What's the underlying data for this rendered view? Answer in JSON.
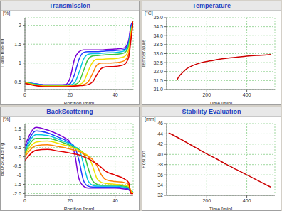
{
  "chart_data": [
    {
      "type": "line",
      "title": "Transmission",
      "unit": "[%]",
      "y_label": "Transmission",
      "x_label": "Position [mm]",
      "x": [
        0,
        5,
        10,
        15,
        18,
        20,
        22,
        24,
        26,
        28,
        30,
        32,
        34,
        36,
        40,
        44,
        46,
        47,
        48
      ],
      "xlim": [
        0,
        48
      ],
      "xticks": [
        0,
        20,
        40
      ],
      "ylim": [
        0.3,
        2.2
      ],
      "yticks": [
        0.5,
        1,
        1.5,
        2
      ],
      "grid": true,
      "series": [
        {
          "color": "#7b00d4",
          "values": [
            0.5,
            0.45,
            0.42,
            0.42,
            0.43,
            0.6,
            1.1,
            1.3,
            1.35,
            1.35,
            1.35,
            1.35,
            1.35,
            1.36,
            1.37,
            1.4,
            1.6,
            2.0,
            2.1
          ]
        },
        {
          "color": "#1f3cff",
          "values": [
            0.5,
            0.45,
            0.42,
            0.42,
            0.42,
            0.45,
            0.7,
            1.1,
            1.28,
            1.3,
            1.3,
            1.3,
            1.31,
            1.32,
            1.33,
            1.36,
            1.55,
            1.95,
            2.1
          ]
        },
        {
          "color": "#00c8e0",
          "values": [
            0.5,
            0.44,
            0.41,
            0.41,
            0.41,
            0.42,
            0.48,
            0.75,
            1.1,
            1.23,
            1.25,
            1.25,
            1.26,
            1.27,
            1.28,
            1.32,
            1.5,
            1.9,
            2.1
          ]
        },
        {
          "color": "#3cc83c",
          "values": [
            0.49,
            0.43,
            0.4,
            0.4,
            0.4,
            0.41,
            0.43,
            0.5,
            0.8,
            1.1,
            1.19,
            1.2,
            1.21,
            1.22,
            1.23,
            1.27,
            1.45,
            1.85,
            2.1
          ]
        },
        {
          "color": "#f0e000",
          "values": [
            0.48,
            0.42,
            0.39,
            0.39,
            0.39,
            0.4,
            0.41,
            0.43,
            0.5,
            0.78,
            1.02,
            1.1,
            1.1,
            1.11,
            1.12,
            1.17,
            1.35,
            1.8,
            2.1
          ]
        },
        {
          "color": "#ff8000",
          "values": [
            0.47,
            0.41,
            0.38,
            0.38,
            0.38,
            0.39,
            0.4,
            0.41,
            0.43,
            0.5,
            0.72,
            0.95,
            1.0,
            1.0,
            1.01,
            1.06,
            1.25,
            1.7,
            2.1
          ]
        },
        {
          "color": "#e00000",
          "values": [
            0.46,
            0.4,
            0.37,
            0.37,
            0.37,
            0.38,
            0.39,
            0.4,
            0.41,
            0.43,
            0.5,
            0.7,
            0.86,
            0.9,
            0.91,
            0.96,
            1.15,
            1.6,
            2.1
          ]
        }
      ]
    },
    {
      "type": "line",
      "title": "Temperature",
      "unit": "[°C]",
      "y_label": "Temperature",
      "x_label": "Time [min]",
      "x": [
        50,
        60,
        80,
        100,
        120,
        150,
        180,
        220,
        260,
        300,
        350,
        400,
        450,
        500,
        520
      ],
      "xlim": [
        0,
        540
      ],
      "xticks": [
        200,
        400
      ],
      "ylim": [
        31,
        35
      ],
      "yticks": [
        {
          "value": 31,
          "label": "31.0"
        },
        31.5,
        {
          "value": 32,
          "label": "32.0"
        },
        32.5,
        {
          "value": 33,
          "label": "33.0"
        },
        33.5,
        {
          "value": 34,
          "label": "34.0"
        },
        34.5,
        {
          "value": 35,
          "label": "35.0"
        }
      ],
      "grid": true,
      "series": [
        {
          "color": "#cc0000",
          "values": [
            31.5,
            31.7,
            31.95,
            32.15,
            32.28,
            32.42,
            32.52,
            32.6,
            32.68,
            32.74,
            32.8,
            32.86,
            32.9,
            32.93,
            32.95
          ]
        }
      ]
    },
    {
      "type": "line",
      "title": "BackScattering",
      "unit": "[%]",
      "y_label": "BackScattering",
      "x_label": "Position [mm]",
      "x": [
        0,
        5,
        10,
        15,
        18,
        20,
        22,
        24,
        26,
        28,
        30,
        32,
        34,
        36,
        40,
        44,
        46,
        47,
        48
      ],
      "xlim": [
        0,
        48
      ],
      "xticks": [
        0,
        20,
        40
      ],
      "ylim": [
        -2.1,
        1.8
      ],
      "yticks": [
        {
          "value": -2,
          "label": "-2.0"
        },
        -1.5,
        -1,
        -0.5,
        0,
        0.5,
        1,
        1.5
      ],
      "grid": true,
      "series": [
        {
          "color": "#7b00d4",
          "values": [
            0.6,
            1.6,
            1.45,
            1.2,
            1.0,
            0.8,
            0.2,
            -1.2,
            -1.6,
            -1.7,
            -1.7,
            -1.7,
            -1.7,
            -1.7,
            -1.7,
            -1.75,
            -1.8,
            -1.9,
            -1.9
          ]
        },
        {
          "color": "#1f3cff",
          "values": [
            0.4,
            1.4,
            1.3,
            1.05,
            0.9,
            0.75,
            0.55,
            -0.2,
            -1.3,
            -1.6,
            -1.65,
            -1.65,
            -1.65,
            -1.65,
            -1.65,
            -1.7,
            -1.75,
            -1.85,
            -1.9
          ]
        },
        {
          "color": "#00c8e0",
          "values": [
            0.3,
            1.2,
            1.15,
            0.95,
            0.8,
            0.7,
            0.55,
            0.4,
            -0.4,
            -1.3,
            -1.55,
            -1.6,
            -1.6,
            -1.6,
            -1.6,
            -1.65,
            -1.7,
            -1.85,
            -1.9
          ]
        },
        {
          "color": "#3cc83c",
          "values": [
            0.2,
            1.0,
            1.0,
            0.85,
            0.72,
            0.62,
            0.5,
            0.38,
            0.2,
            -0.6,
            -1.3,
            -1.5,
            -1.55,
            -1.55,
            -1.55,
            -1.6,
            -1.65,
            -1.85,
            -1.95
          ]
        },
        {
          "color": "#f0e000",
          "values": [
            0.1,
            0.8,
            0.85,
            0.72,
            0.62,
            0.55,
            0.45,
            0.35,
            0.2,
            0.05,
            -0.5,
            -1.2,
            -1.4,
            -1.45,
            -1.5,
            -1.55,
            -1.6,
            -1.85,
            -1.95
          ]
        },
        {
          "color": "#ff8000",
          "values": [
            0,
            0.6,
            0.65,
            0.55,
            0.48,
            0.42,
            0.35,
            0.28,
            0.15,
            0.02,
            -0.15,
            -0.5,
            -1.0,
            -1.25,
            -1.35,
            -1.4,
            -1.5,
            -1.9,
            -2.0
          ]
        },
        {
          "color": "#e00000",
          "values": [
            -0.2,
            0.35,
            0.4,
            0.3,
            0.25,
            0.2,
            0.15,
            0.1,
            0,
            -0.1,
            -0.25,
            -0.4,
            -0.6,
            -0.8,
            -1.0,
            -1.2,
            -1.4,
            -2.0,
            -2.0
          ]
        }
      ]
    },
    {
      "type": "line",
      "title": "Stability Evaluation",
      "unit": "[mm]",
      "y_label": "Position",
      "x_label": "Time [min]",
      "x": [
        10,
        50,
        100,
        150,
        200,
        250,
        300,
        350,
        400,
        450,
        500,
        520
      ],
      "xlim": [
        0,
        540
      ],
      "xticks": [
        200,
        400
      ],
      "ylim": [
        32,
        46
      ],
      "yticks": [
        32,
        34,
        36,
        38,
        40,
        42,
        44,
        46
      ],
      "grid": true,
      "series": [
        {
          "color": "#cc0000",
          "values": [
            44.2,
            43.4,
            42.3,
            41.2,
            40.1,
            39.1,
            38.0,
            37.0,
            36.0,
            35.0,
            34.0,
            33.6
          ]
        }
      ]
    }
  ]
}
